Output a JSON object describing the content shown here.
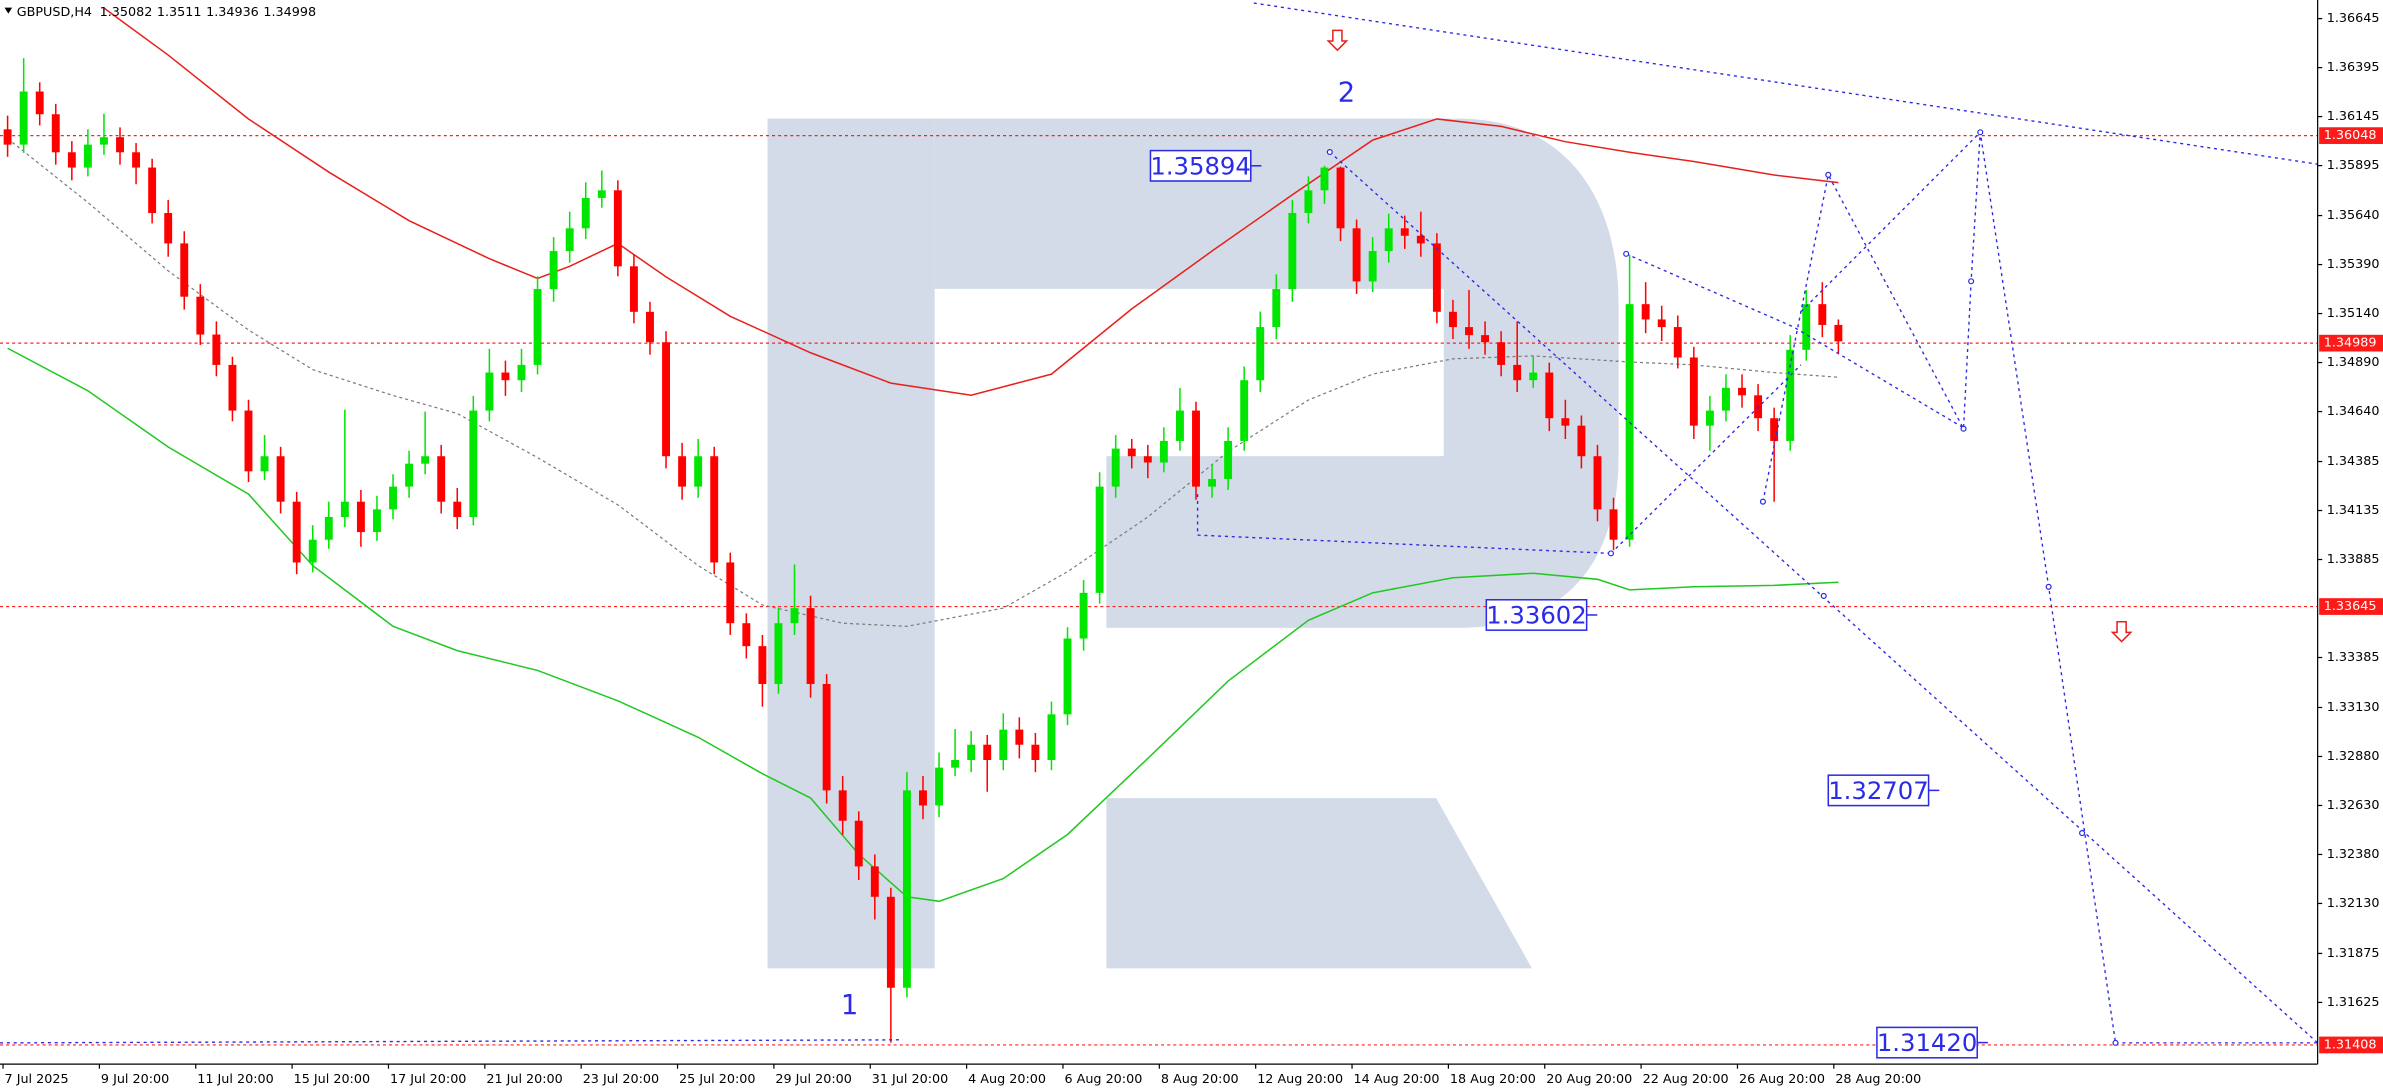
{
  "chart_data": {
    "type": "candlestick",
    "symbol": "GBPUSD,H4",
    "ylim": [
      1.3131,
      1.3674
    ],
    "yticks": [
      1.36645,
      1.36395,
      1.36145,
      1.35895,
      {
        "value": 1.3564,
        "label": "1.35640"
      },
      {
        "value": 1.3539,
        "label": "1.35390"
      },
      {
        "value": 1.3514,
        "label": "1.35140"
      },
      {
        "value": 1.3489,
        "label": "1.34890"
      },
      {
        "value": 1.3464,
        "label": "1.34640"
      },
      1.34385,
      1.34135,
      1.33885,
      1.33385,
      {
        "value": 1.3313,
        "label": "1.33130"
      },
      {
        "value": 1.3288,
        "label": "1.32880"
      },
      {
        "value": 1.3263,
        "label": "1.32630"
      },
      {
        "value": 1.3238,
        "label": "1.32380"
      },
      {
        "value": 1.3213,
        "label": "1.32130"
      },
      1.31875,
      1.31625
    ],
    "grid": false,
    "up_color": "#00e600",
    "down_color": "#ff0000",
    "categories": [
      "7 Jul 2025",
      null,
      null,
      null,
      null,
      null,
      "9 Jul 20:00",
      null,
      null,
      null,
      null,
      null,
      "11 Jul 20:00",
      null,
      null,
      null,
      null,
      null,
      "15 Jul 20:00",
      null,
      null,
      null,
      null,
      null,
      "17 Jul 20:00",
      null,
      null,
      null,
      null,
      null,
      "21 Jul 20:00",
      null,
      null,
      null,
      null,
      null,
      "23 Jul 20:00",
      null,
      null,
      null,
      null,
      null,
      "25 Jul 20:00",
      null,
      null,
      null,
      null,
      null,
      "29 Jul 20:00",
      null,
      null,
      null,
      null,
      null,
      "31 Jul 20:00",
      null,
      null,
      null,
      null,
      null,
      "4 Aug 20:00",
      null,
      null,
      null,
      null,
      null,
      "6 Aug 20:00",
      null,
      null,
      null,
      null,
      null,
      "8 Aug 20:00",
      null,
      null,
      null,
      null,
      null,
      "12 Aug 20:00",
      null,
      null,
      null,
      null,
      null,
      "14 Aug 20:00",
      null,
      null,
      null,
      null,
      null,
      "18 Aug 20:00",
      null,
      null,
      null,
      null,
      null,
      "20 Aug 20:00",
      null,
      null,
      null,
      null,
      null,
      "22 Aug 20:00",
      null,
      null,
      null,
      null,
      null,
      "26 Aug 20:00",
      null,
      null,
      null,
      null,
      null,
      "28 Aug 20:00"
    ],
    "open": [
      1.3608,
      1.36002,
      1.36273,
      1.36157,
      1.35963,
      1.35885,
      1.36002,
      1.3604,
      1.35963,
      1.35885,
      1.35653,
      1.35498,
      1.35226,
      1.35033,
      1.34878,
      1.34645,
      1.34335,
      1.34412,
      1.3418,
      1.3387,
      1.33986,
      1.34102,
      1.3418,
      1.34025,
      1.34141,
      1.34257,
      1.34374,
      1.34412,
      1.3418,
      1.34102,
      1.34645,
      1.34839,
      1.348,
      1.34878,
      1.35265,
      1.35459,
      1.35575,
      1.3573,
      1.35769,
      1.35381,
      1.35149,
      1.34994,
      1.34412,
      1.34257,
      1.34412,
      1.3387,
      1.3356,
      1.33443,
      1.3325,
      1.3356,
      1.33637,
      1.3325,
      1.32707,
      1.32552,
      1.32319,
      1.32164,
      1.317,
      1.32707,
      1.3263,
      1.32823,
      1.32862,
      1.3294,
      1.32862,
      1.33017,
      1.3294,
      1.32862,
      1.33095,
      1.33482,
      1.33715,
      1.34257,
      1.34451,
      1.34412,
      1.3438,
      1.3449,
      1.34645,
      1.34257,
      1.34296,
      1.3449,
      1.348,
      1.35071,
      1.35265,
      1.35653,
      1.35769,
      1.35885,
      1.35575,
      1.35304,
      1.35459,
      1.35575,
      1.35537,
      1.35498,
      1.35149,
      1.35071,
      1.3503,
      1.34994,
      1.34878,
      1.348,
      1.34839,
      1.34606,
      1.34568,
      1.34412,
      1.34141,
      1.33986,
      1.35188,
      1.3511,
      1.35071,
      1.34916,
      1.34568,
      1.34645,
      1.34761,
      1.34723,
      1.34606,
      1.3449,
      1.34955,
      1.35188,
      1.35082
    ],
    "high": [
      1.3615,
      1.36443,
      1.3632,
      1.3621,
      1.3602,
      1.3608,
      1.3616,
      1.3609,
      1.3601,
      1.3593,
      1.3572,
      1.3556,
      1.3529,
      1.351,
      1.3492,
      1.347,
      1.3452,
      1.3446,
      1.3423,
      1.3406,
      1.3418,
      1.3465,
      1.3424,
      1.3421,
      1.3432,
      1.3444,
      1.3464,
      1.3447,
      1.3425,
      1.3472,
      1.3496,
      1.349,
      1.3496,
      1.3533,
      1.3553,
      1.3566,
      1.3581,
      1.3587,
      1.3582,
      1.3544,
      1.352,
      1.3505,
      1.3448,
      1.345,
      1.3446,
      1.3392,
      1.3361,
      1.335,
      1.3364,
      1.3386,
      1.337,
      1.333,
      1.3278,
      1.326,
      1.3238,
      1.3221,
      1.328,
      1.3278,
      1.329,
      1.3302,
      1.3301,
      1.3299,
      1.331,
      1.3308,
      1.33,
      1.3316,
      1.3354,
      1.3378,
      1.3433,
      1.3452,
      1.345,
      1.3447,
      1.3456,
      1.3476,
      1.3469,
      1.3437,
      1.3456,
      1.3487,
      1.3515,
      1.3534,
      1.3572,
      1.3584,
      1.35894,
      1.3589,
      1.3562,
      1.3553,
      1.3565,
      1.3564,
      1.3566,
      1.3555,
      1.3521,
      1.3526,
      1.351,
      1.3505,
      1.351,
      1.3492,
      1.3489,
      1.347,
      1.3462,
      1.3447,
      1.342,
      1.3544,
      1.353,
      1.3518,
      1.3513,
      1.3497,
      1.3472,
      1.3483,
      1.3483,
      1.3478,
      1.3466,
      1.3503,
      1.3526,
      1.353,
      1.3511
    ],
    "low": [
      1.3594,
      1.3596,
      1.361,
      1.359,
      1.3582,
      1.3584,
      1.3595,
      1.359,
      1.358,
      1.356,
      1.3543,
      1.3516,
      1.3498,
      1.3482,
      1.3459,
      1.3428,
      1.3429,
      1.3412,
      1.3381,
      1.3382,
      1.3394,
      1.3405,
      1.3395,
      1.3398,
      1.3409,
      1.342,
      1.3432,
      1.3412,
      1.3404,
      1.3406,
      1.3459,
      1.3472,
      1.3474,
      1.3483,
      1.352,
      1.354,
      1.3552,
      1.3568,
      1.3533,
      1.3509,
      1.3493,
      1.3435,
      1.3419,
      1.342,
      1.3381,
      1.335,
      1.3338,
      1.33134,
      1.332,
      1.335,
      1.3318,
      1.3264,
      1.3248,
      1.3225,
      1.32048,
      1.3142,
      1.3165,
      1.3256,
      1.3257,
      1.3278,
      1.328,
      1.327,
      1.3281,
      1.3287,
      1.328,
      1.3281,
      1.3304,
      1.3342,
      1.3366,
      1.342,
      1.3435,
      1.343,
      1.3433,
      1.3444,
      1.3419,
      1.342,
      1.3424,
      1.3444,
      1.3474,
      1.3501,
      1.352,
      1.356,
      1.357,
      1.3551,
      1.3524,
      1.3525,
      1.354,
      1.3547,
      1.3543,
      1.3509,
      1.3501,
      1.3496,
      1.3493,
      1.3482,
      1.3474,
      1.3476,
      1.3454,
      1.345,
      1.3435,
      1.3408,
      1.33933,
      1.3395,
      1.3504,
      1.35,
      1.3486,
      1.345,
      1.3444,
      1.3459,
      1.3466,
      1.3454,
      1.3418,
      1.3444,
      1.349,
      1.3502,
      1.34936
    ],
    "close": [
      1.36002,
      1.36273,
      1.36157,
      1.35963,
      1.35885,
      1.36002,
      1.3604,
      1.35963,
      1.35885,
      1.35653,
      1.35498,
      1.35226,
      1.35033,
      1.34878,
      1.34645,
      1.34335,
      1.34412,
      1.3418,
      1.3387,
      1.33986,
      1.34102,
      1.3418,
      1.34025,
      1.34141,
      1.34257,
      1.34374,
      1.34412,
      1.3418,
      1.34102,
      1.34645,
      1.34839,
      1.348,
      1.34878,
      1.35265,
      1.35459,
      1.35575,
      1.3573,
      1.35769,
      1.35381,
      1.35149,
      1.34994,
      1.34412,
      1.34257,
      1.34412,
      1.3387,
      1.3356,
      1.33443,
      1.3325,
      1.3356,
      1.33637,
      1.3325,
      1.32707,
      1.32552,
      1.32319,
      1.32164,
      1.317,
      1.32707,
      1.3263,
      1.32823,
      1.32862,
      1.3294,
      1.32862,
      1.33017,
      1.3294,
      1.32862,
      1.33095,
      1.33482,
      1.33715,
      1.34257,
      1.34451,
      1.34412,
      1.3438,
      1.3449,
      1.34645,
      1.34257,
      1.34296,
      1.3449,
      1.348,
      1.35071,
      1.35265,
      1.35653,
      1.35769,
      1.35885,
      1.35575,
      1.35304,
      1.35459,
      1.35575,
      1.35537,
      1.35498,
      1.35149,
      1.35071,
      1.3503,
      1.34994,
      1.34878,
      1.348,
      1.34839,
      1.34606,
      1.34568,
      1.34412,
      1.34141,
      1.33986,
      1.35188,
      1.3511,
      1.35071,
      1.34916,
      1.34568,
      1.34645,
      1.34761,
      1.34723,
      1.34606,
      1.3449,
      1.34955,
      1.35188,
      1.35082,
      1.34998
    ],
    "indicators": [
      {
        "color": "#e8201c",
        "dash": "solid",
        "x": [
          6,
          10,
          15,
          20,
          25,
          30,
          33,
          35,
          38,
          41,
          45,
          50,
          55,
          60,
          65,
          70,
          75,
          80,
          85,
          89,
          93,
          97,
          101,
          105,
          110,
          114
        ],
        "values": [
          1.36699,
          1.36459,
          1.36133,
          1.35862,
          1.35614,
          1.3542,
          1.35319,
          1.35381,
          1.35498,
          1.35327,
          1.35126,
          1.3494,
          1.34785,
          1.34723,
          1.34831,
          1.35164,
          1.35459,
          1.35746,
          1.36025,
          1.36133,
          1.36095,
          1.36017,
          1.35963,
          1.35916,
          1.35847,
          1.35808
        ]
      },
      {
        "color": "#22c822",
        "dash": "solid",
        "x": [
          0,
          5,
          10,
          15,
          19,
          24,
          28,
          33,
          38,
          43,
          47,
          50,
          53,
          56,
          58,
          62,
          66,
          71,
          76,
          81,
          85,
          90,
          95,
          99,
          101,
          105,
          110,
          114
        ],
        "values": [
          1.34963,
          1.34746,
          1.34459,
          1.34219,
          1.33854,
          1.33544,
          1.3342,
          1.33319,
          1.33164,
          1.32978,
          1.32792,
          1.32668,
          1.32381,
          1.32164,
          1.32141,
          1.32257,
          1.32482,
          1.3287,
          1.33265,
          1.33575,
          1.33715,
          1.33792,
          1.33815,
          1.33784,
          1.3373,
          1.33746,
          1.33753,
          1.33769
        ]
      },
      {
        "color": "#7a7a7a",
        "dash": "dotted",
        "x": [
          0,
          5,
          10,
          15,
          19,
          24,
          28,
          33,
          38,
          43,
          47,
          52,
          56,
          62,
          66,
          71,
          76,
          81,
          85,
          90,
          95,
          101,
          105,
          110,
          114
        ],
        "values": [
          1.36033,
          1.35707,
          1.35358,
          1.35056,
          1.34854,
          1.34722,
          1.3463,
          1.34405,
          1.34164,
          1.33854,
          1.33653,
          1.3356,
          1.33544,
          1.33637,
          1.33823,
          1.34102,
          1.34436,
          1.34699,
          1.34831,
          1.34909,
          1.34924,
          1.34893,
          1.34878,
          1.34839,
          1.34815
        ]
      }
    ],
    "price_levels": [
      1.36048,
      1.34989,
      1.33645,
      1.31408
    ],
    "price_labels": [
      1.35894,
      1.33602,
      1.32707,
      {
        "value": 1.3142,
        "label": "1.31420"
      }
    ],
    "wave_labels": [
      "1",
      "2"
    ]
  }
}
